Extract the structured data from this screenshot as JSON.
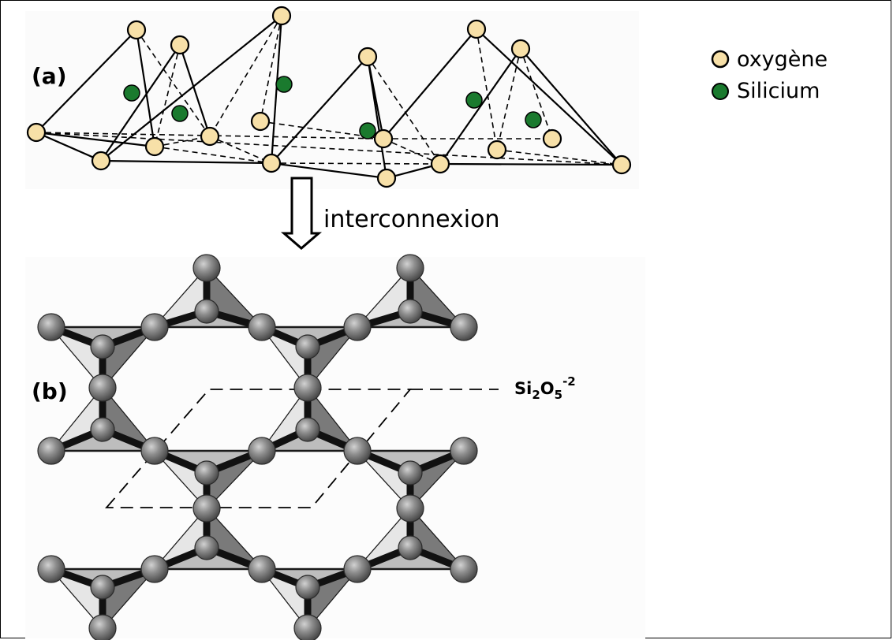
{
  "panel_a": {
    "label": "(a)"
  },
  "legend": {
    "items": [
      {
        "label": "oxygène",
        "color": "#f7e0a8",
        "icon": "oxygen-atom-icon"
      },
      {
        "label": "Silicium",
        "color": "#1a7a2e",
        "icon": "silicon-atom-icon"
      }
    ]
  },
  "arrow": {
    "label": "interconnexion",
    "icon": "down-arrow-icon"
  },
  "panel_b": {
    "label": "(b)",
    "formula": {
      "base1": "Si",
      "sub1": "2",
      "base2": "O",
      "sub2": "5",
      "charge": "-2"
    }
  }
}
